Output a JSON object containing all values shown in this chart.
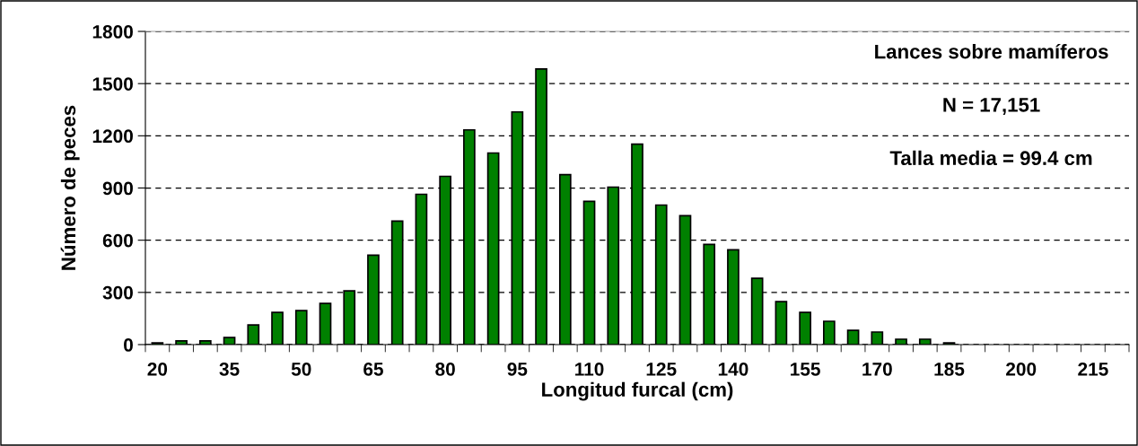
{
  "chart_data": {
    "type": "bar",
    "xlabel": "Longitud furcal (cm)",
    "ylabel": "Número de peces",
    "categories": [
      "20",
      null,
      null,
      "35",
      null,
      null,
      "50",
      null,
      null,
      "65",
      null,
      null,
      "80",
      null,
      null,
      "95",
      null,
      null,
      "110",
      null,
      null,
      "125",
      null,
      null,
      "140",
      null,
      null,
      "155",
      null,
      null,
      "170",
      null,
      null,
      "185",
      null,
      null,
      "200",
      null,
      null,
      "215",
      null
    ],
    "values": [
      10,
      21,
      21,
      41,
      113,
      185,
      195,
      237,
      309,
      514,
      710,
      864,
      967,
      1234,
      1101,
      1337,
      1584,
      977,
      823,
      905,
      1152,
      802,
      741,
      576,
      545,
      381,
      247,
      185,
      134,
      82,
      72,
      31,
      31,
      10,
      null,
      null,
      null,
      null,
      null,
      null,
      null
    ],
    "color": "#008000",
    "ylim": [
      0,
      1800
    ],
    "yticks": [
      0,
      300,
      600,
      900,
      1200,
      1500,
      1800
    ],
    "grid": "y",
    "annotations": [
      "Lances sobre mamíferos",
      "N = 17,151",
      "Talla media = 99.4 cm"
    ]
  }
}
